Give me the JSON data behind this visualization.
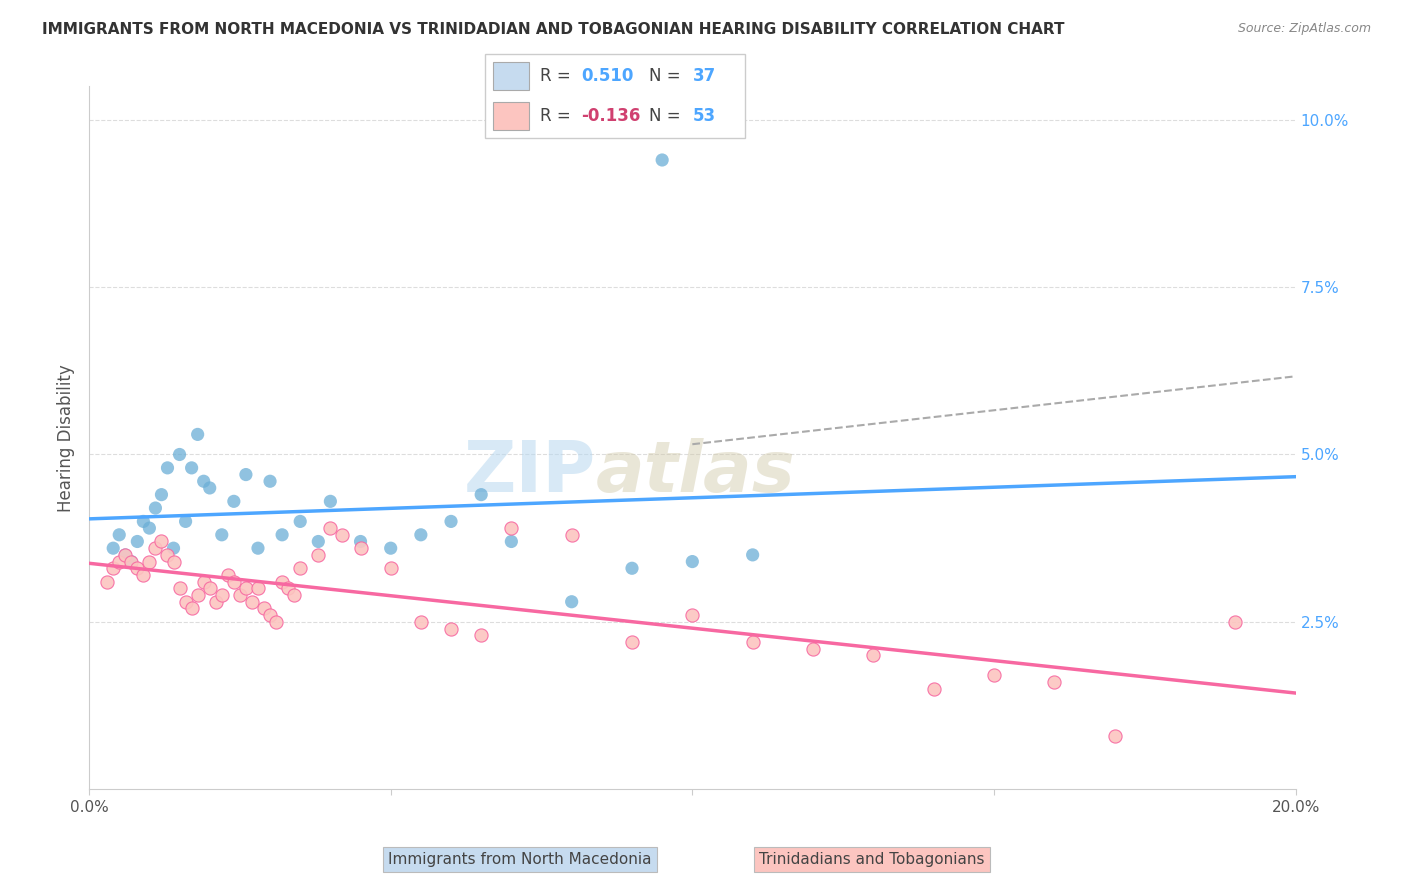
{
  "title": "IMMIGRANTS FROM NORTH MACEDONIA VS TRINIDADIAN AND TOBAGONIAN HEARING DISABILITY CORRELATION CHART",
  "source": "Source: ZipAtlas.com",
  "ylabel": "Hearing Disability",
  "xlim": [
    0.0,
    0.2
  ],
  "ylim": [
    0.0,
    0.105
  ],
  "blue_color": "#6baed6",
  "blue_fill": "#c6dbef",
  "pink_color": "#f768a1",
  "pink_fill": "#fcc5c0",
  "R_blue": 0.51,
  "N_blue": 37,
  "R_pink": -0.136,
  "N_pink": 53,
  "blue_scatter_x": [
    0.004,
    0.005,
    0.006,
    0.007,
    0.008,
    0.009,
    0.01,
    0.011,
    0.012,
    0.013,
    0.014,
    0.015,
    0.016,
    0.017,
    0.018,
    0.019,
    0.02,
    0.022,
    0.024,
    0.026,
    0.028,
    0.03,
    0.032,
    0.035,
    0.038,
    0.04,
    0.045,
    0.05,
    0.055,
    0.06,
    0.065,
    0.07,
    0.08,
    0.09,
    0.1,
    0.11,
    0.095
  ],
  "blue_scatter_y": [
    0.036,
    0.038,
    0.035,
    0.034,
    0.037,
    0.04,
    0.039,
    0.042,
    0.044,
    0.048,
    0.036,
    0.05,
    0.04,
    0.048,
    0.053,
    0.046,
    0.045,
    0.038,
    0.043,
    0.047,
    0.036,
    0.046,
    0.038,
    0.04,
    0.037,
    0.043,
    0.037,
    0.036,
    0.038,
    0.04,
    0.044,
    0.037,
    0.028,
    0.033,
    0.034,
    0.035,
    0.094
  ],
  "pink_scatter_x": [
    0.003,
    0.004,
    0.005,
    0.006,
    0.007,
    0.008,
    0.009,
    0.01,
    0.011,
    0.012,
    0.013,
    0.014,
    0.015,
    0.016,
    0.017,
    0.018,
    0.019,
    0.02,
    0.021,
    0.022,
    0.023,
    0.024,
    0.025,
    0.026,
    0.027,
    0.028,
    0.029,
    0.03,
    0.031,
    0.032,
    0.033,
    0.034,
    0.035,
    0.038,
    0.04,
    0.042,
    0.045,
    0.05,
    0.055,
    0.06,
    0.065,
    0.07,
    0.08,
    0.09,
    0.1,
    0.11,
    0.12,
    0.13,
    0.14,
    0.15,
    0.16,
    0.17,
    0.19
  ],
  "pink_scatter_y": [
    0.031,
    0.033,
    0.034,
    0.035,
    0.034,
    0.033,
    0.032,
    0.034,
    0.036,
    0.037,
    0.035,
    0.034,
    0.03,
    0.028,
    0.027,
    0.029,
    0.031,
    0.03,
    0.028,
    0.029,
    0.032,
    0.031,
    0.029,
    0.03,
    0.028,
    0.03,
    0.027,
    0.026,
    0.025,
    0.031,
    0.03,
    0.029,
    0.033,
    0.035,
    0.039,
    0.038,
    0.036,
    0.033,
    0.025,
    0.024,
    0.023,
    0.039,
    0.038,
    0.022,
    0.026,
    0.022,
    0.021,
    0.02,
    0.015,
    0.017,
    0.016,
    0.008,
    0.025
  ],
  "watermark_zip": "ZIP",
  "watermark_atlas": "atlas",
  "background_color": "#ffffff",
  "grid_color": "#dddddd",
  "line_blue": "#4da6ff",
  "line_pink": "#f768a1",
  "line_dash": "#aaaaaa",
  "legend_R_label": "R = ",
  "legend_N_label": "N = ",
  "legend_blue_R": "0.510",
  "legend_blue_N": "37",
  "legend_pink_R": "-0.136",
  "legend_pink_N": "53",
  "bottom_label_blue": "Immigrants from North Macedonia",
  "bottom_label_pink": "Trinidadians and Tobagonians"
}
